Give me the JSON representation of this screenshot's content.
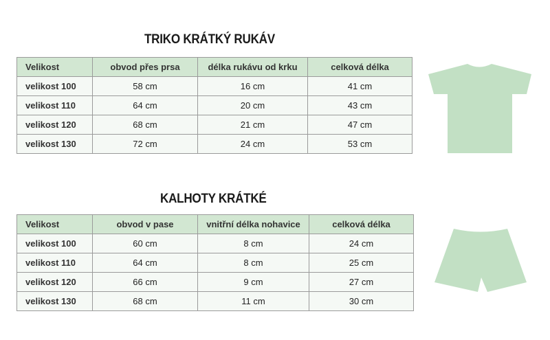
{
  "shirt": {
    "title": "TRIKO KRÁTKÝ RUKÁV",
    "headers": [
      "Velikost",
      "obvod přes prsa",
      "délka rukávu od krku",
      "celková délka"
    ],
    "rows": [
      [
        "velikost 100",
        "58 cm",
        "16 cm",
        "41 cm"
      ],
      [
        "velikost 110",
        "64 cm",
        "20 cm",
        "43 cm"
      ],
      [
        "velikost 120",
        "68 cm",
        "21 cm",
        "47 cm"
      ],
      [
        "velikost 130",
        "72 cm",
        "24 cm",
        "53 cm"
      ]
    ]
  },
  "shorts": {
    "title": "KALHOTY KRÁTKÉ",
    "headers": [
      "Velikost",
      "obvod v pase",
      "vnitřní délka nohavice",
      "celková délka"
    ],
    "rows": [
      [
        "velikost 100",
        "60 cm",
        "8 cm",
        "24 cm"
      ],
      [
        "velikost 110",
        "64 cm",
        "8 cm",
        "25 cm"
      ],
      [
        "velikost 120",
        "66 cm",
        "9 cm",
        "27 cm"
      ],
      [
        "velikost 130",
        "68 cm",
        "11 cm",
        "30 cm"
      ]
    ]
  },
  "colors": {
    "header": "#d2e7d2",
    "illustration": "#c2e0c4"
  }
}
